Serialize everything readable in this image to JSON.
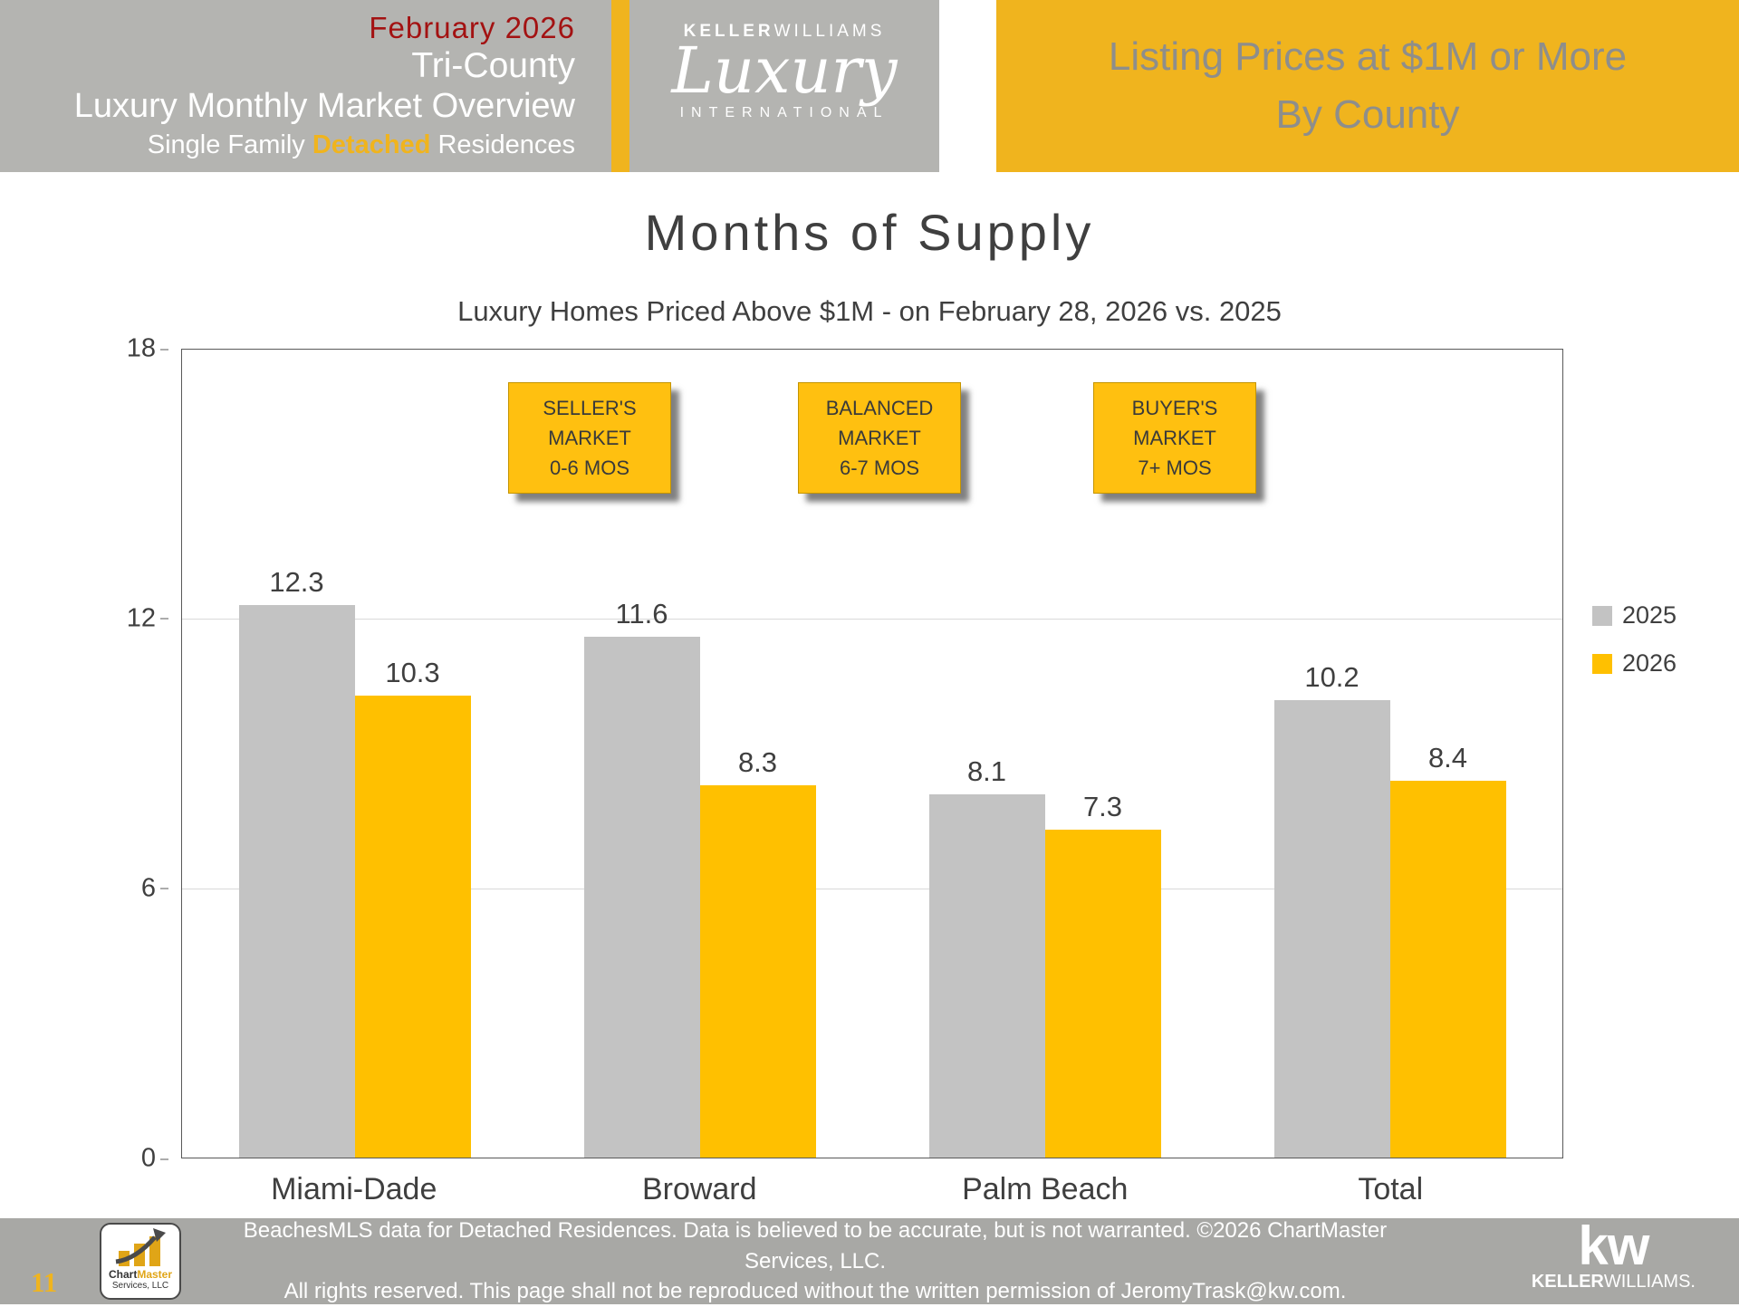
{
  "header": {
    "date": "February 2026",
    "region": "Tri-County",
    "report_title": "Luxury Monthly Market Overview",
    "subtitle_prefix": "Single Family ",
    "subtitle_highlight": "Detached",
    "subtitle_suffix": " Residences",
    "logo": {
      "top_bold": "KELLER",
      "top_light": "WILLIAMS",
      "script": "Luxury",
      "bottom": "INTERNATIONAL"
    },
    "right_line1": "Listing Prices at $1M or More",
    "right_line2": "By County"
  },
  "chart_data": {
    "type": "bar",
    "title": "Months of Supply",
    "subtitle": "Luxury Homes Priced Above $1M - on February 28,  2026 vs. 2025",
    "categories": [
      "Miami-Dade",
      "Broward",
      "Palm Beach",
      "Total"
    ],
    "series": [
      {
        "name": "2025",
        "color": "#c3c3c3",
        "values": [
          12.3,
          11.6,
          8.1,
          10.2
        ]
      },
      {
        "name": "2026",
        "color": "#ffc000",
        "values": [
          10.3,
          8.3,
          7.3,
          8.4
        ]
      }
    ],
    "ylim": [
      0,
      18
    ],
    "yticks": [
      0,
      6,
      12,
      18
    ],
    "grid": true,
    "legend_position": "right",
    "annotations": [
      {
        "text": "SELLER'S\nMARKET\n0-6 MOS"
      },
      {
        "text": "BALANCED\nMARKET\n6-7 MOS"
      },
      {
        "text": "BUYER'S\nMARKET\n7+ MOS"
      }
    ]
  },
  "footer": {
    "page_number": "11",
    "disclaimer_line1": "BeachesMLS data for Detached Residences.  Data is believed to be accurate, but is not warranted.  ©2026  ChartMaster Services, LLC.",
    "disclaimer_line2": "All rights reserved. This page shall not be reproduced without the written permission of JeromyTrask@kw.com.",
    "chartmaster_line1_dark": "Chart",
    "chartmaster_line1_gold": "Master",
    "chartmaster_line2": "Services, LLC",
    "kw_mark": "kw",
    "kw_name_bold": "KELLER",
    "kw_name_light": "WILLIAMS."
  },
  "colors": {
    "gold": "#F0B41E",
    "bar_gold": "#FFC000",
    "header_gray": "#B4B4B1",
    "footer_gray": "#A8A8A5",
    "date_red": "#A31212",
    "bar_gray": "#C3C3C3"
  }
}
